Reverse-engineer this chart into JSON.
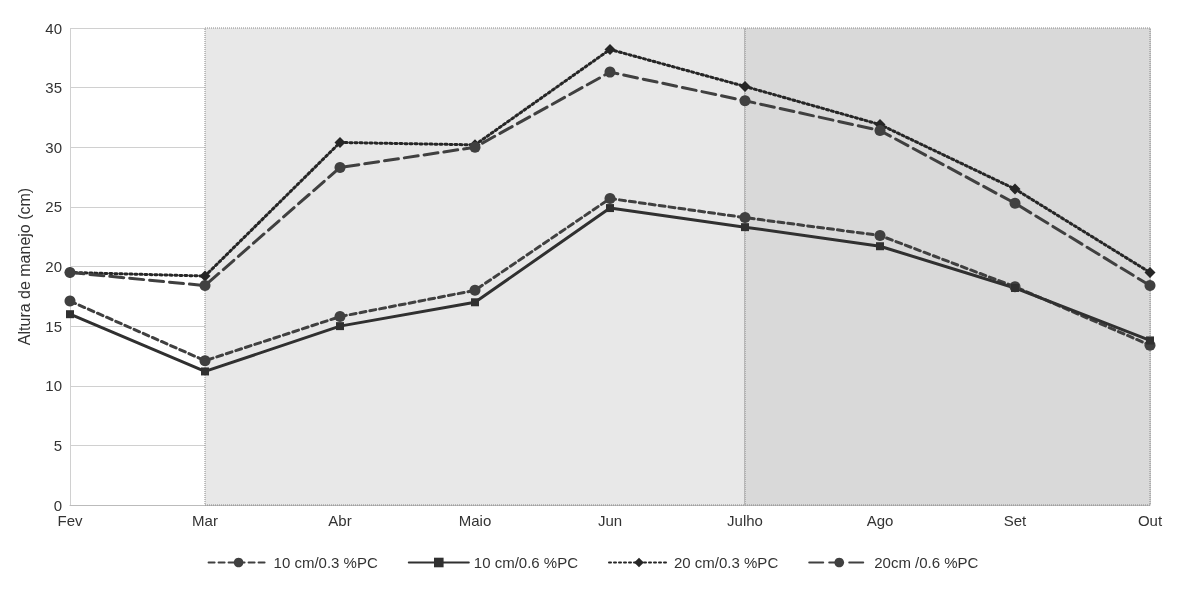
{
  "chart_data": {
    "type": "line",
    "ylabel": "Altura de manejo (cm)",
    "categories": [
      "Fev",
      "Mar",
      "Abr",
      "Maio",
      "Jun",
      "Julho",
      "Ago",
      "Set",
      "Out"
    ],
    "ylim": [
      0,
      40
    ],
    "yticks": [
      0,
      5,
      10,
      15,
      20,
      25,
      30,
      35,
      40
    ],
    "grid": true,
    "legend": "bottom",
    "bands": [
      {
        "axis": "x",
        "from": "Mar",
        "to": "Julho",
        "color": "#e8e8e8"
      },
      {
        "axis": "x",
        "from": "Julho",
        "to": "Out",
        "color": "#d9d9d9"
      }
    ],
    "series": [
      {
        "name": "10 cm/0.3 %PC",
        "color": "#404040",
        "marker": "circle",
        "line_style": "dashed",
        "values": [
          17.1,
          12.1,
          15.8,
          18.0,
          25.7,
          24.1,
          22.6,
          18.3,
          13.4
        ]
      },
      {
        "name": "10 cm/0.6 %PC",
        "color": "#303030",
        "marker": "square",
        "line_style": "solid",
        "values": [
          16.0,
          11.2,
          15.0,
          17.0,
          24.9,
          23.3,
          21.7,
          18.2,
          13.8
        ]
      },
      {
        "name": "20 cm/0.3 %PC",
        "color": "#262626",
        "marker": "diamond",
        "line_style": "dotted",
        "values": [
          19.5,
          19.2,
          30.4,
          30.2,
          38.2,
          35.1,
          31.9,
          26.5,
          19.5
        ]
      },
      {
        "name": "20cm /0.6 %PC",
        "color": "#404040",
        "marker": "circle",
        "line_style": "longdash",
        "values": [
          19.5,
          18.4,
          28.3,
          30.0,
          36.3,
          33.9,
          31.4,
          25.3,
          18.4
        ]
      }
    ]
  }
}
